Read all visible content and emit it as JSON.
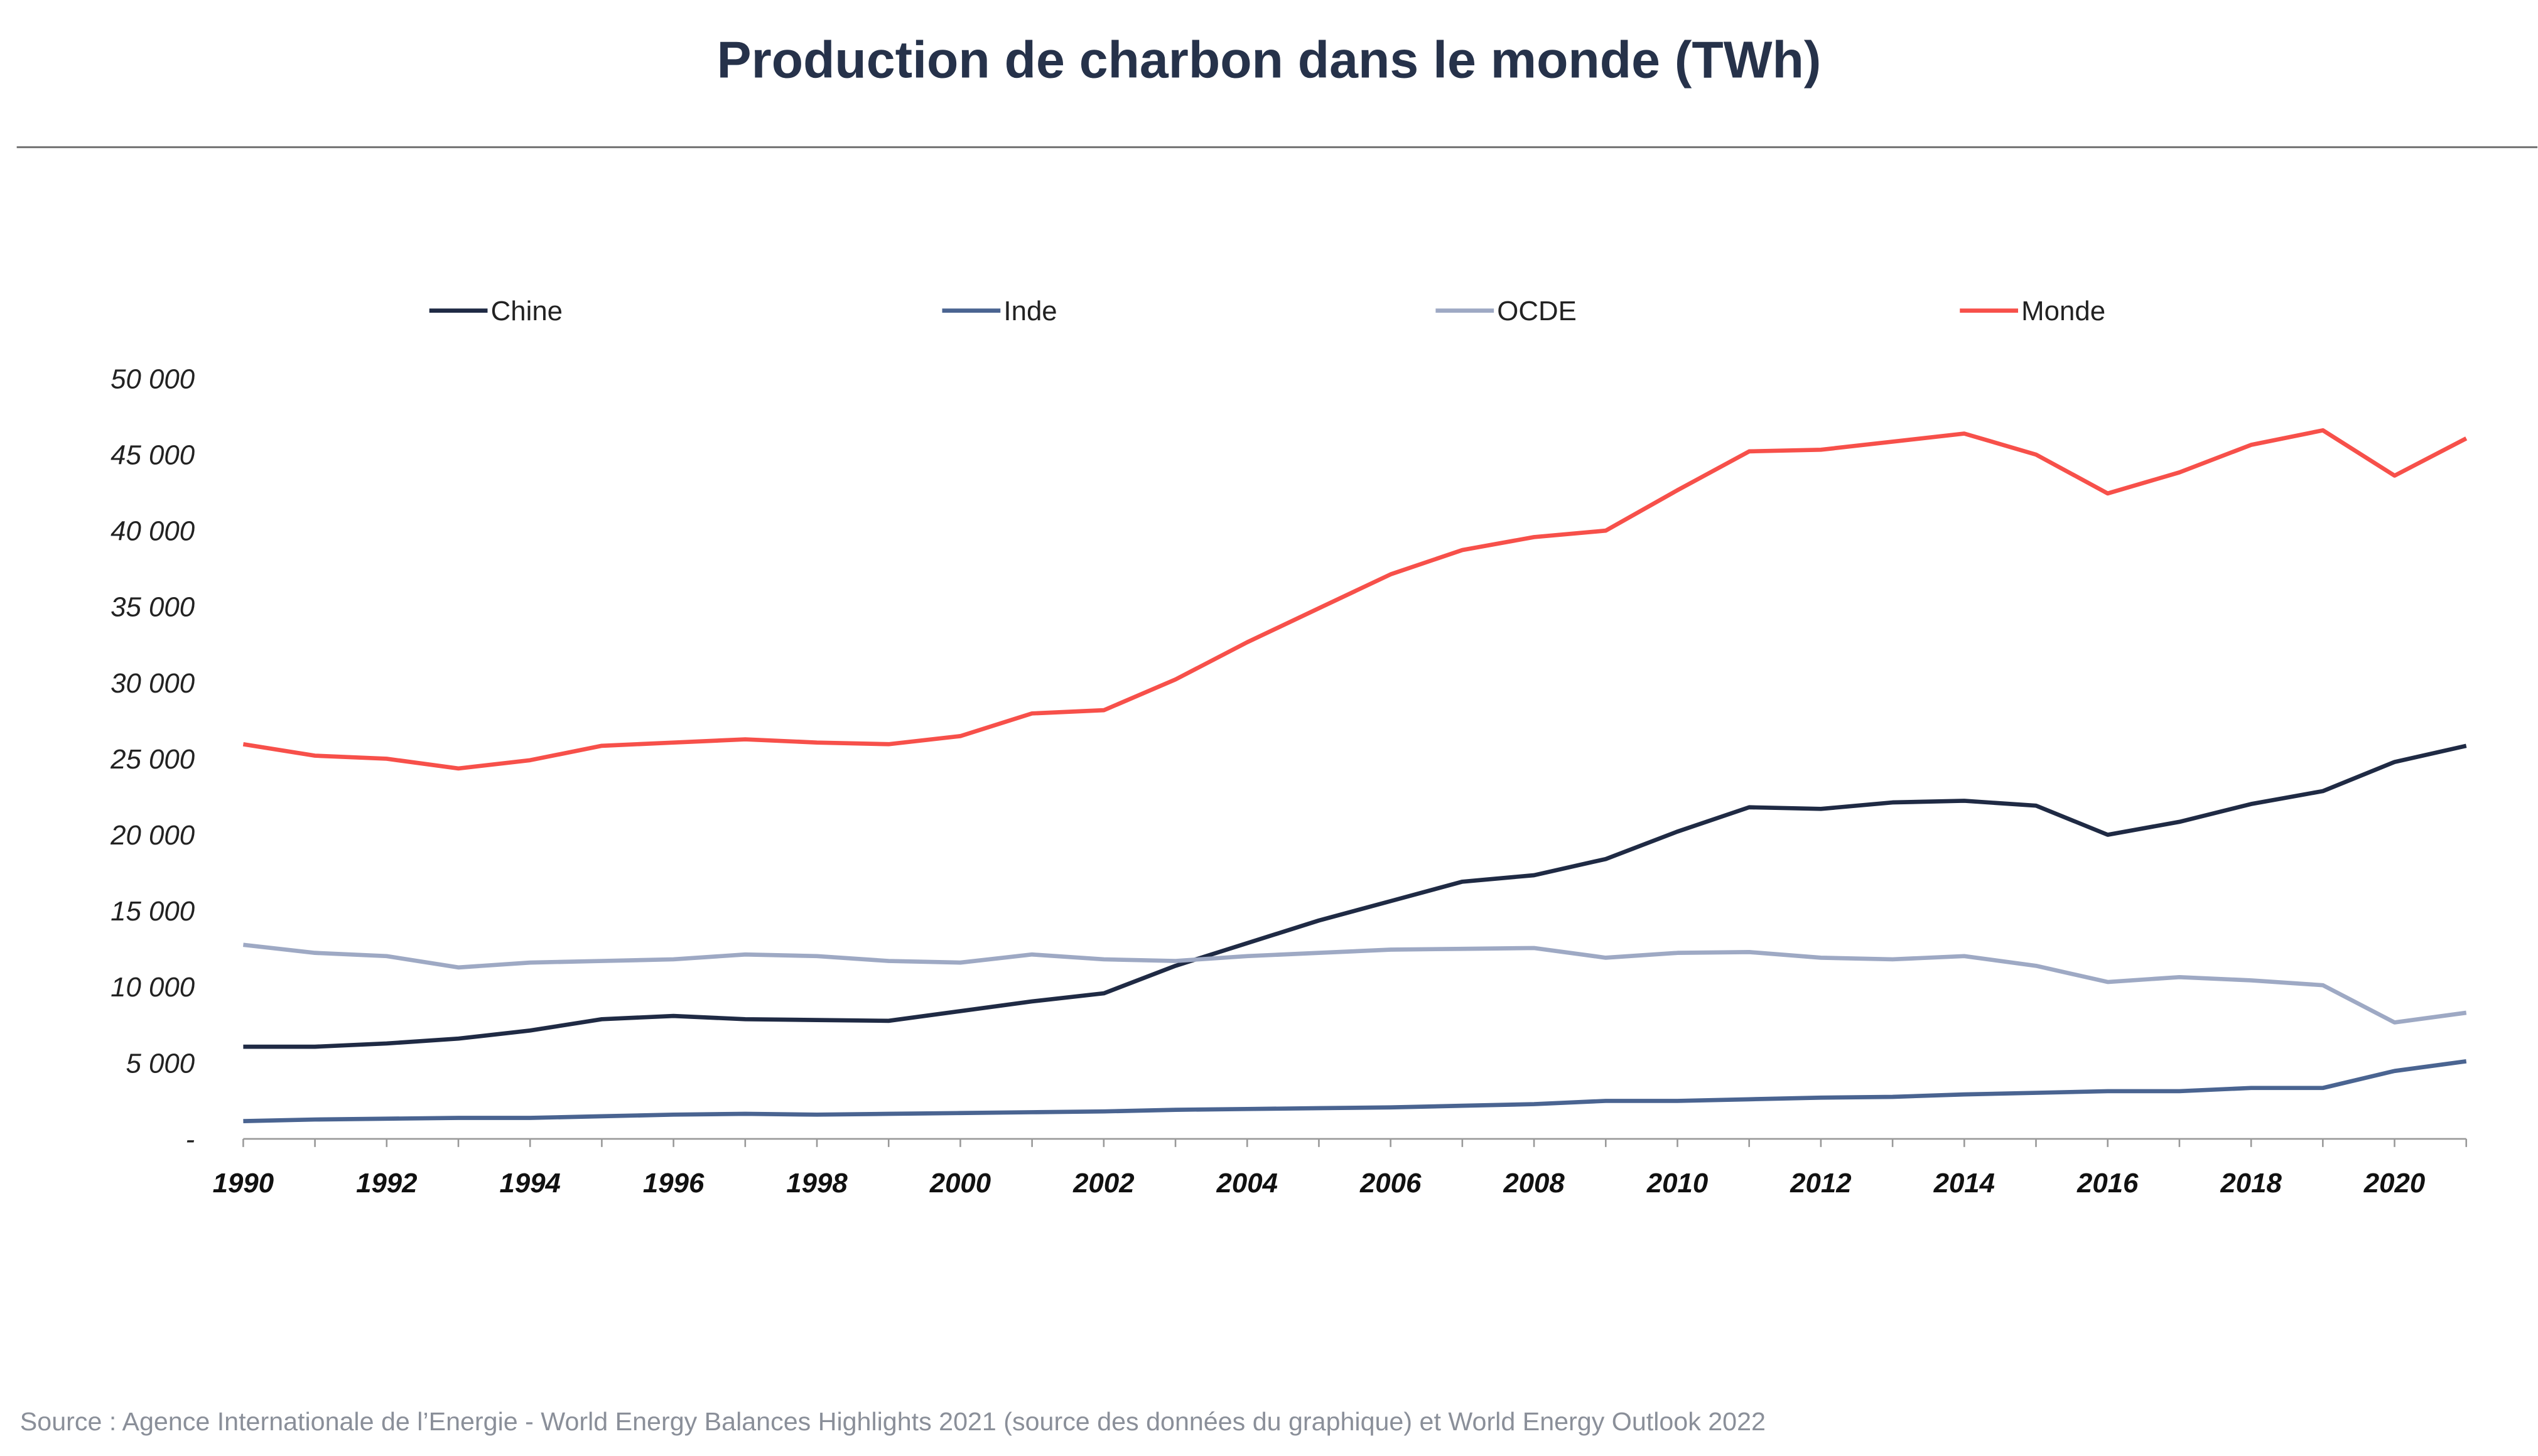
{
  "chart_data": {
    "type": "line",
    "title": "Production de charbon dans le monde (TWh)",
    "xlabel": "",
    "ylabel": "",
    "xlim": [
      1990,
      2021
    ],
    "ylim": [
      0,
      50000
    ],
    "grid": false,
    "legend_position": "top",
    "y_ticks": [
      0,
      5000,
      10000,
      15000,
      20000,
      25000,
      30000,
      35000,
      40000,
      45000,
      50000
    ],
    "y_tick_labels": [
      "-",
      "5 000",
      "10 000",
      "15 000",
      "20 000",
      "25 000",
      "30 000",
      "35 000",
      "40 000",
      "45 000",
      "50 000"
    ],
    "x_ticks": [
      1990,
      1992,
      1994,
      1996,
      1998,
      2000,
      2002,
      2004,
      2006,
      2008,
      2010,
      2012,
      2014,
      2016,
      2018,
      2020
    ],
    "x_tick_labels": [
      "1990",
      "1992",
      "1994",
      "1996",
      "1998",
      "2000",
      "2002",
      "2004",
      "2006",
      "2008",
      "2010",
      "2012",
      "2014",
      "2016",
      "2018",
      "2020"
    ],
    "x": [
      1990,
      1991,
      1992,
      1993,
      1994,
      1995,
      1996,
      1997,
      1998,
      1999,
      2000,
      2001,
      2002,
      2003,
      2004,
      2005,
      2006,
      2007,
      2008,
      2009,
      2010,
      2011,
      2012,
      2013,
      2014,
      2015,
      2016,
      2017,
      2018,
      2019,
      2020,
      2021
    ],
    "series": [
      {
        "name": "Chine",
        "color": "#1f2a44",
        "values": [
          6060,
          6060,
          6280,
          6600,
          7130,
          7870,
          8090,
          7870,
          7820,
          7770,
          8400,
          9040,
          9570,
          11380,
          12870,
          14360,
          15640,
          16910,
          17340,
          18400,
          20210,
          21810,
          21700,
          22130,
          22230,
          21910,
          20000,
          20850,
          22020,
          22870,
          24790,
          25850
        ]
      },
      {
        "name": "Inde",
        "color": "#4a6491",
        "values": [
          1170,
          1280,
          1330,
          1380,
          1380,
          1490,
          1600,
          1650,
          1600,
          1650,
          1700,
          1750,
          1810,
          1910,
          1970,
          2020,
          2070,
          2180,
          2290,
          2500,
          2500,
          2610,
          2710,
          2770,
          2930,
          3030,
          3140,
          3140,
          3350,
          3350,
          4470,
          5110
        ]
      },
      {
        "name": "OCDE",
        "color": "#9ea9c4",
        "values": [
          12770,
          12230,
          12020,
          11280,
          11600,
          11700,
          11810,
          12130,
          12020,
          11700,
          11600,
          12130,
          11810,
          11700,
          12020,
          12230,
          12450,
          12500,
          12550,
          11910,
          12230,
          12290,
          11910,
          11810,
          12020,
          11380,
          10320,
          10640,
          10430,
          10110,
          7660,
          8300
        ]
      },
      {
        "name": "Monde",
        "color": "#f7504a",
        "values": [
          25960,
          25200,
          25000,
          24360,
          24900,
          25850,
          26060,
          26280,
          26060,
          25960,
          26490,
          27980,
          28190,
          30210,
          32660,
          34890,
          37130,
          38720,
          39570,
          40000,
          42660,
          45210,
          45320,
          45850,
          46380,
          45000,
          42450,
          43830,
          45640,
          46600,
          43620,
          46060
        ]
      }
    ],
    "source": "Source : Agence Internationale de l’Energie - World Energy Balances Highlights 2021 (source des données du graphique) et World Energy Outlook 2022"
  }
}
